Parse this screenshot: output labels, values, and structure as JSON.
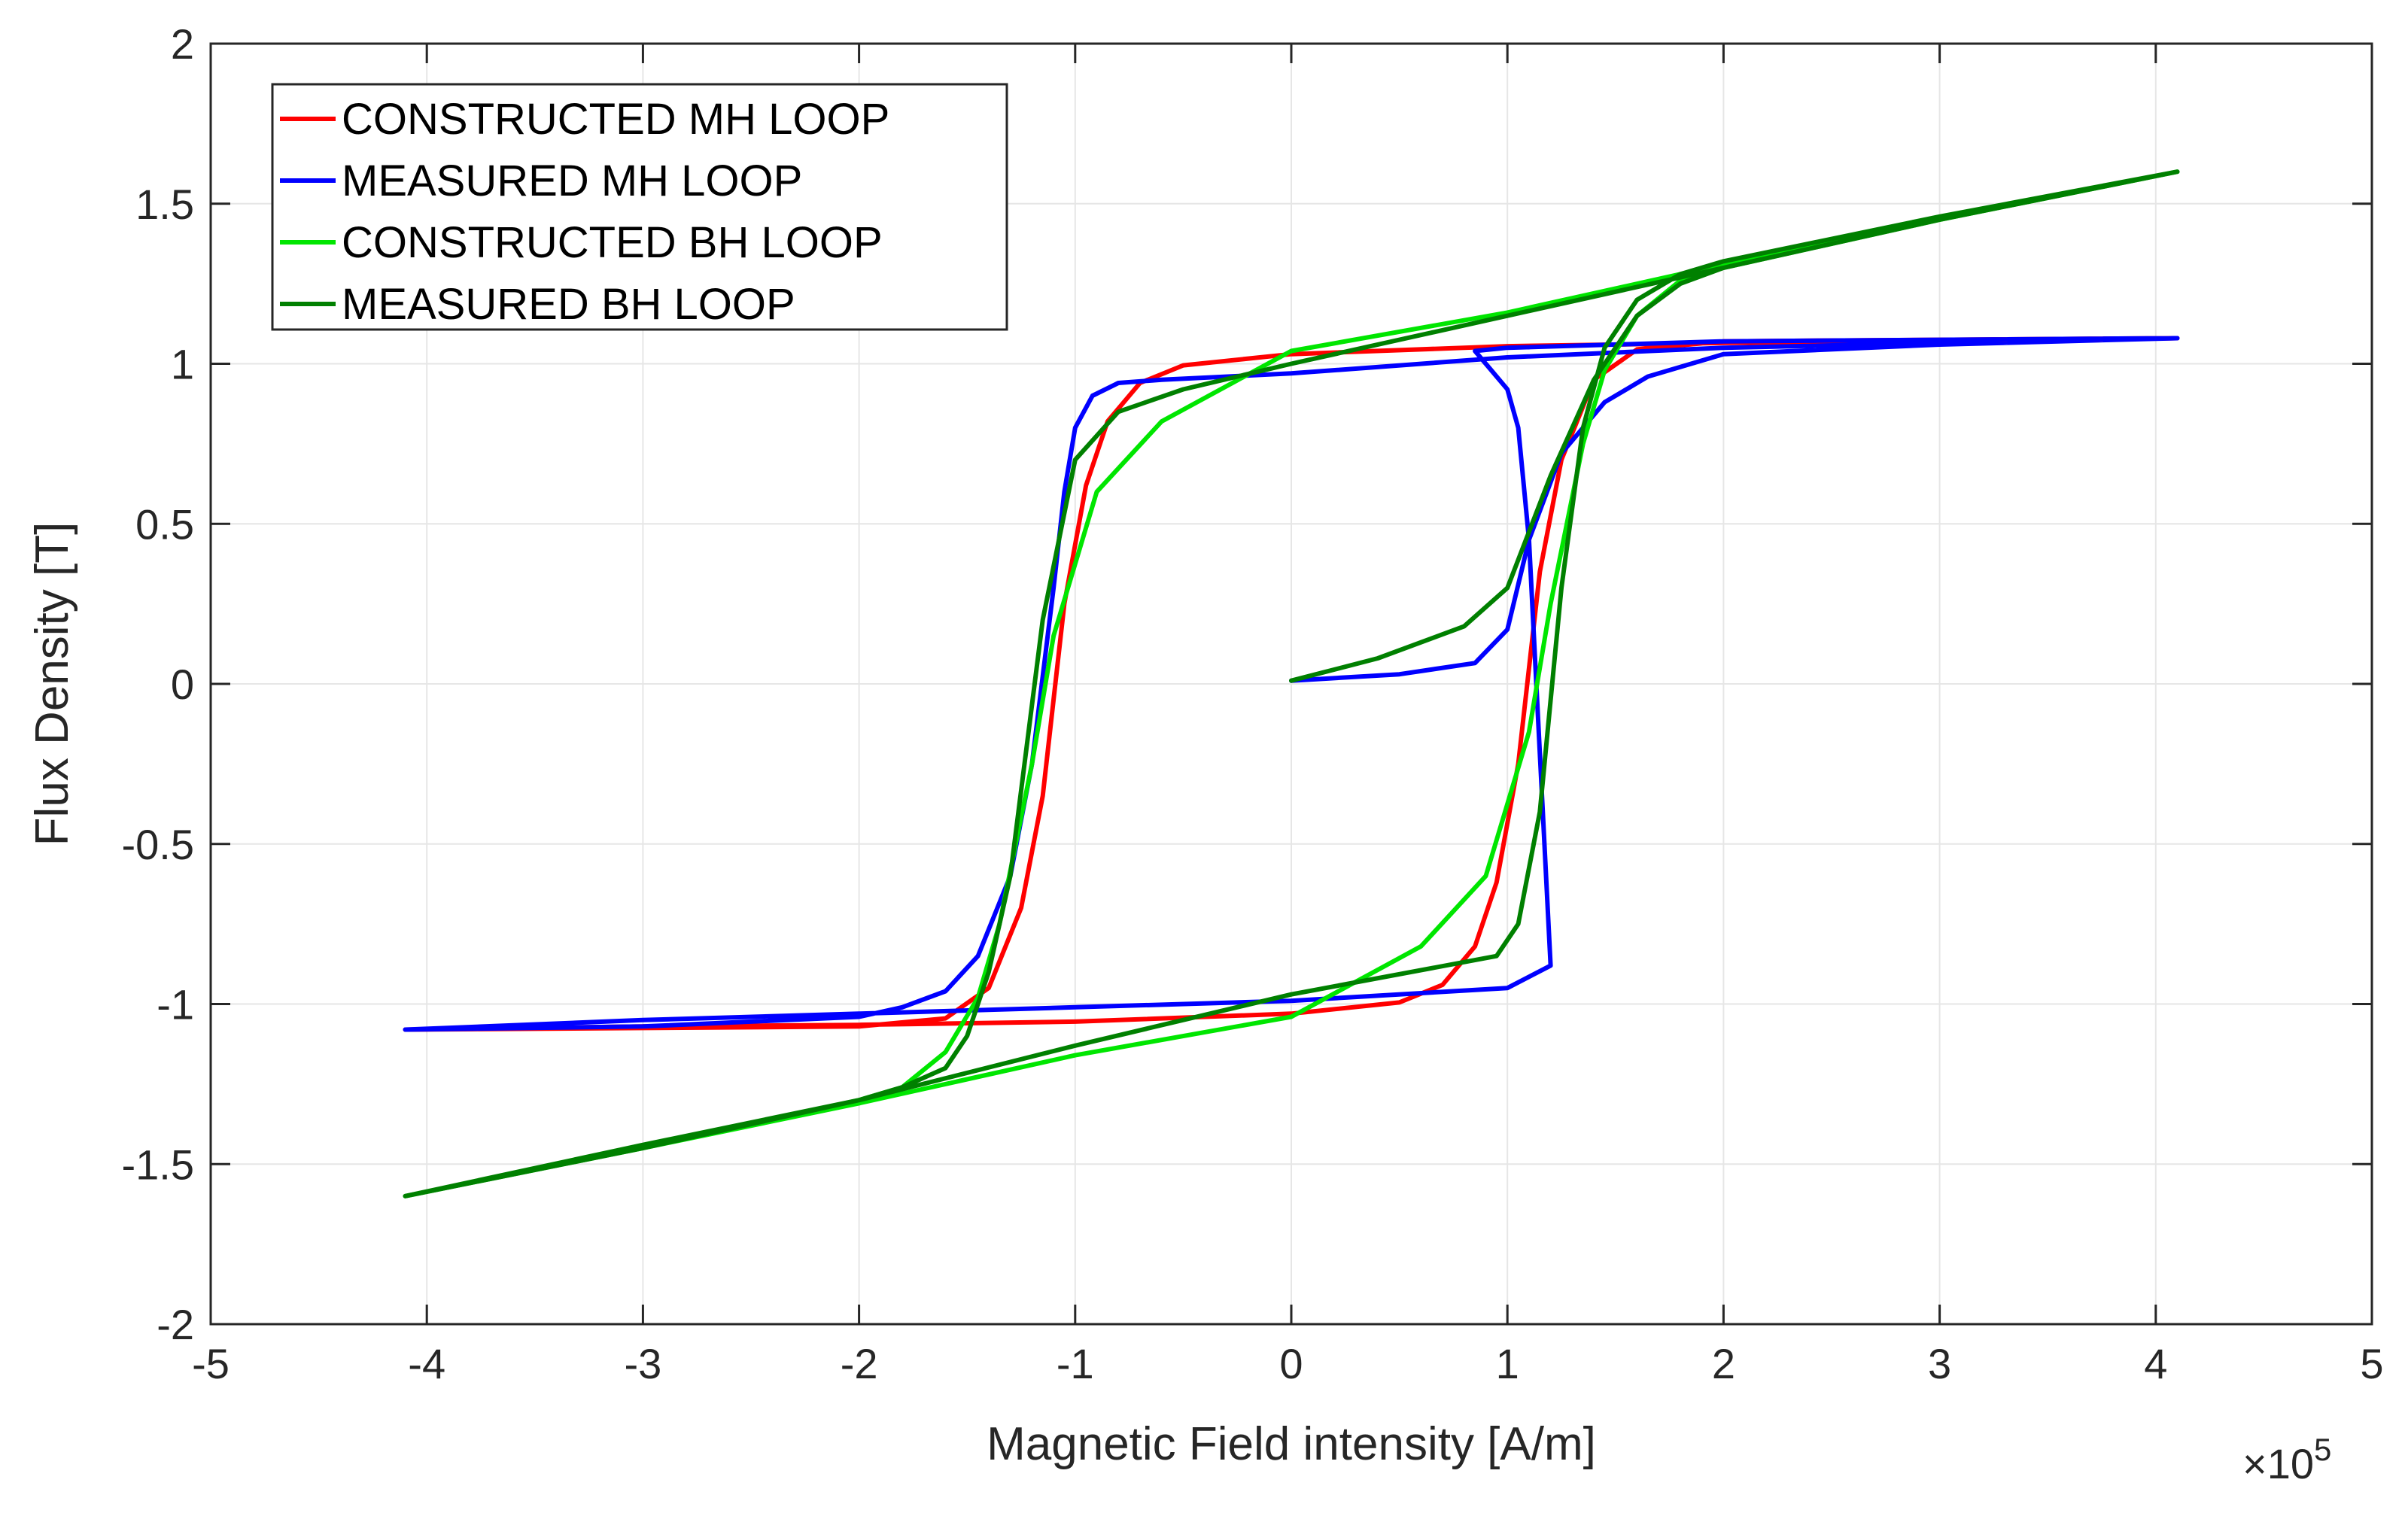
{
  "chart_data": {
    "type": "line",
    "title": "",
    "xlabel": "Magnetic Field intensity [A/m]",
    "ylabel": "Flux Density [T]",
    "x_multiplier_label": "×10",
    "x_multiplier_exponent": "5",
    "x_scale": 100000,
    "xlim": [
      -5,
      5
    ],
    "ylim": [
      -2,
      2
    ],
    "grid": true,
    "legend_location": "top-left",
    "x_ticks": [
      {
        "value": -5,
        "label": "-5"
      },
      {
        "value": -4,
        "label": "-4"
      },
      {
        "value": -3,
        "label": "-3"
      },
      {
        "value": -2,
        "label": "-2"
      },
      {
        "value": -1,
        "label": "-1"
      },
      {
        "value": 0,
        "label": "0"
      },
      {
        "value": 1,
        "label": "1"
      },
      {
        "value": 2,
        "label": "2"
      },
      {
        "value": 3,
        "label": "3"
      },
      {
        "value": 4,
        "label": "4"
      },
      {
        "value": 5,
        "label": "5"
      }
    ],
    "y_ticks": [
      {
        "value": -2,
        "label": "-2"
      },
      {
        "value": -1.5,
        "label": "-1.5"
      },
      {
        "value": -1,
        "label": "-1"
      },
      {
        "value": -0.5,
        "label": "-0.5"
      },
      {
        "value": 0,
        "label": "0"
      },
      {
        "value": 0.5,
        "label": "0.5"
      },
      {
        "value": 1,
        "label": "1"
      },
      {
        "value": 1.5,
        "label": "1.5"
      },
      {
        "value": 2,
        "label": "2"
      }
    ],
    "series": [
      {
        "name": "CONSTRUCTED MH LOOP",
        "color": "#ff0000",
        "x": [
          4.1,
          3.0,
          2.0,
          1.6,
          1.4,
          1.25,
          1.15,
          1.05,
          0.95,
          0.85,
          0.7,
          0.5,
          0.0,
          -1.0,
          -2.0,
          -3.0,
          -4.1,
          -3.0,
          -2.0,
          -1.6,
          -1.4,
          -1.25,
          -1.15,
          -1.05,
          -0.95,
          -0.85,
          -0.7,
          -0.5,
          0.0,
          1.0,
          2.0,
          3.0,
          4.1
        ],
        "y": [
          1.08,
          1.075,
          1.07,
          1.045,
          0.95,
          0.7,
          0.35,
          -0.25,
          -0.62,
          -0.82,
          -0.94,
          -0.995,
          -1.03,
          -1.055,
          -1.065,
          -1.07,
          -1.08,
          -1.075,
          -1.07,
          -1.045,
          -0.95,
          -0.7,
          -0.35,
          0.25,
          0.62,
          0.82,
          0.94,
          0.995,
          1.03,
          1.055,
          1.065,
          1.07,
          1.08
        ]
      },
      {
        "name": "MEASURED MH LOOP",
        "color": "#0000ff",
        "x": [
          0.0,
          0.5,
          0.85,
          1.0,
          1.1,
          1.25,
          1.45,
          1.65,
          2.0,
          3.0,
          4.1,
          3.0,
          2.0,
          1.0,
          0.85,
          0.9,
          1.0,
          1.05,
          1.1,
          1.2,
          1.0,
          0.0,
          -1.0,
          -2.0,
          -3.0,
          -4.1,
          -3.0,
          -2.0,
          -1.8,
          -1.6,
          -1.45,
          -1.3,
          -1.2,
          -1.1,
          -1.05,
          -1.0,
          -0.92,
          -0.8,
          -0.6,
          0.0,
          1.0,
          2.0,
          3.0,
          4.1
        ],
        "y": [
          0.01,
          0.03,
          0.065,
          0.17,
          0.45,
          0.72,
          0.88,
          0.96,
          1.03,
          1.06,
          1.08,
          1.075,
          1.07,
          1.05,
          1.04,
          1.0,
          0.92,
          0.8,
          0.45,
          -0.88,
          -0.95,
          -0.99,
          -1.01,
          -1.03,
          -1.05,
          -1.08,
          -1.07,
          -1.04,
          -1.01,
          -0.96,
          -0.85,
          -0.6,
          -0.25,
          0.3,
          0.6,
          0.8,
          0.9,
          0.94,
          0.95,
          0.97,
          1.02,
          1.05,
          1.065,
          1.08
        ]
      },
      {
        "name": "CONSTRUCTED BH LOOP",
        "color": "#00e600",
        "x": [
          4.1,
          3.0,
          2.0,
          1.8,
          1.6,
          1.45,
          1.35,
          1.2,
          1.1,
          0.9,
          0.6,
          0.0,
          -1.0,
          -2.0,
          -3.0,
          -4.1,
          -3.0,
          -2.0,
          -1.8,
          -1.6,
          -1.45,
          -1.35,
          -1.2,
          -1.1,
          -0.9,
          -0.6,
          0.0,
          1.0,
          2.0,
          3.0,
          4.1
        ],
        "y": [
          1.6,
          1.45,
          1.3,
          1.26,
          1.15,
          0.98,
          0.75,
          0.25,
          -0.15,
          -0.6,
          -0.82,
          -1.04,
          -1.16,
          -1.31,
          -1.45,
          -1.6,
          -1.45,
          -1.3,
          -1.26,
          -1.15,
          -0.98,
          -0.75,
          -0.25,
          0.15,
          0.6,
          0.82,
          1.04,
          1.16,
          1.31,
          1.45,
          1.6
        ]
      },
      {
        "name": "MEASURED BH LOOP",
        "color": "#008000",
        "x": [
          0.0,
          0.4,
          0.8,
          1.0,
          1.2,
          1.4,
          1.6,
          1.8,
          2.0,
          3.0,
          4.1,
          3.0,
          2.0,
          1.8,
          1.6,
          1.45,
          1.35,
          1.25,
          1.15,
          1.05,
          0.95,
          0.0,
          -1.0,
          -2.0,
          -3.0,
          -4.1,
          -3.0,
          -2.0,
          -1.8,
          -1.6,
          -1.5,
          -1.4,
          -1.3,
          -1.15,
          -1.0,
          -0.8,
          -0.5,
          0.0,
          1.0,
          2.0,
          3.0,
          4.1
        ],
        "y": [
          0.01,
          0.08,
          0.18,
          0.3,
          0.65,
          0.95,
          1.15,
          1.25,
          1.3,
          1.45,
          1.6,
          1.46,
          1.32,
          1.28,
          1.2,
          1.05,
          0.8,
          0.3,
          -0.4,
          -0.75,
          -0.85,
          -0.97,
          -1.13,
          -1.3,
          -1.45,
          -1.6,
          -1.44,
          -1.3,
          -1.26,
          -1.2,
          -1.1,
          -0.9,
          -0.6,
          0.2,
          0.7,
          0.85,
          0.92,
          1.0,
          1.15,
          1.3,
          1.45,
          1.6
        ]
      }
    ]
  }
}
